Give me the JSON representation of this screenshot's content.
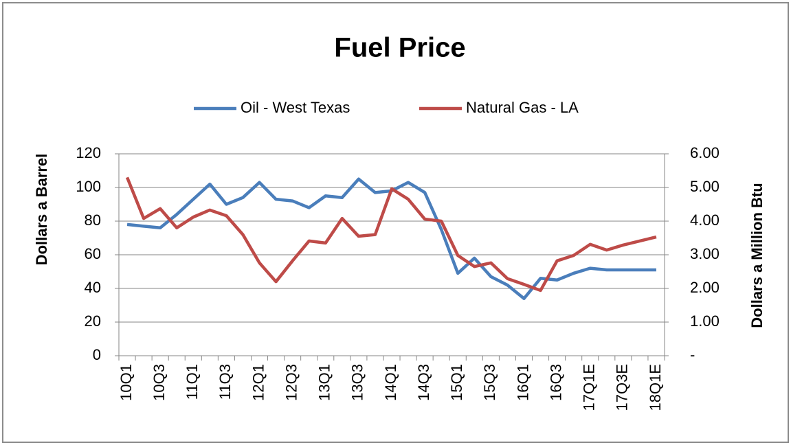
{
  "chart_data": {
    "type": "line",
    "title": "Fuel Price",
    "y_label": "Dollars a Barrel",
    "y2_label": "Dollars a Million Btu",
    "categories": [
      "10Q1",
      null,
      "10Q3",
      null,
      "11Q1",
      null,
      "11Q3",
      null,
      "12Q1",
      null,
      "12Q3",
      null,
      "13Q1",
      null,
      "13Q3",
      null,
      "14Q1",
      null,
      "14Q3",
      null,
      "15Q1",
      null,
      "15Q3",
      null,
      "16Q1",
      null,
      "16Q3",
      null,
      "17Q1E",
      null,
      "17Q3E",
      null,
      "18Q1E"
    ],
    "series": [
      {
        "name": "Oil - West Texas",
        "color": "#4a7ebb",
        "values": [
          78,
          77,
          76,
          84,
          93,
          102,
          90,
          94,
          103,
          93,
          92,
          88,
          95,
          94,
          105,
          97,
          98,
          103,
          97,
          75,
          49,
          58,
          47,
          42,
          34,
          46,
          45,
          49,
          52,
          51,
          51,
          51,
          51
        ]
      },
      {
        "name": "Natural Gas - LA",
        "color": "#be4b48",
        "axis": "y2",
        "values": [
          5.3,
          4.08,
          4.37,
          3.8,
          4.12,
          4.33,
          4.16,
          3.6,
          2.76,
          2.2,
          2.82,
          3.41,
          3.35,
          4.08,
          3.55,
          3.6,
          4.96,
          4.65,
          4.06,
          4.0,
          2.98,
          2.65,
          2.76,
          2.29,
          2.12,
          1.94,
          2.82,
          2.98,
          3.31,
          3.14,
          3.29,
          3.41,
          3.53
        ]
      }
    ],
    "ylim": [
      0,
      120
    ],
    "yticks": [
      0,
      20,
      40,
      60,
      80,
      100,
      120
    ],
    "y2lim": [
      0,
      6
    ],
    "y2ticks": [
      {
        "value": 0,
        "label": "-"
      },
      {
        "value": 1,
        "label": "1.00"
      },
      {
        "value": 2,
        "label": "2.00"
      },
      {
        "value": 3,
        "label": "3.00"
      },
      {
        "value": 4,
        "label": "4.00"
      },
      {
        "value": 5,
        "label": "5.00"
      },
      {
        "value": 6,
        "label": "6.00"
      }
    ],
    "grid": true,
    "legend": "top"
  }
}
